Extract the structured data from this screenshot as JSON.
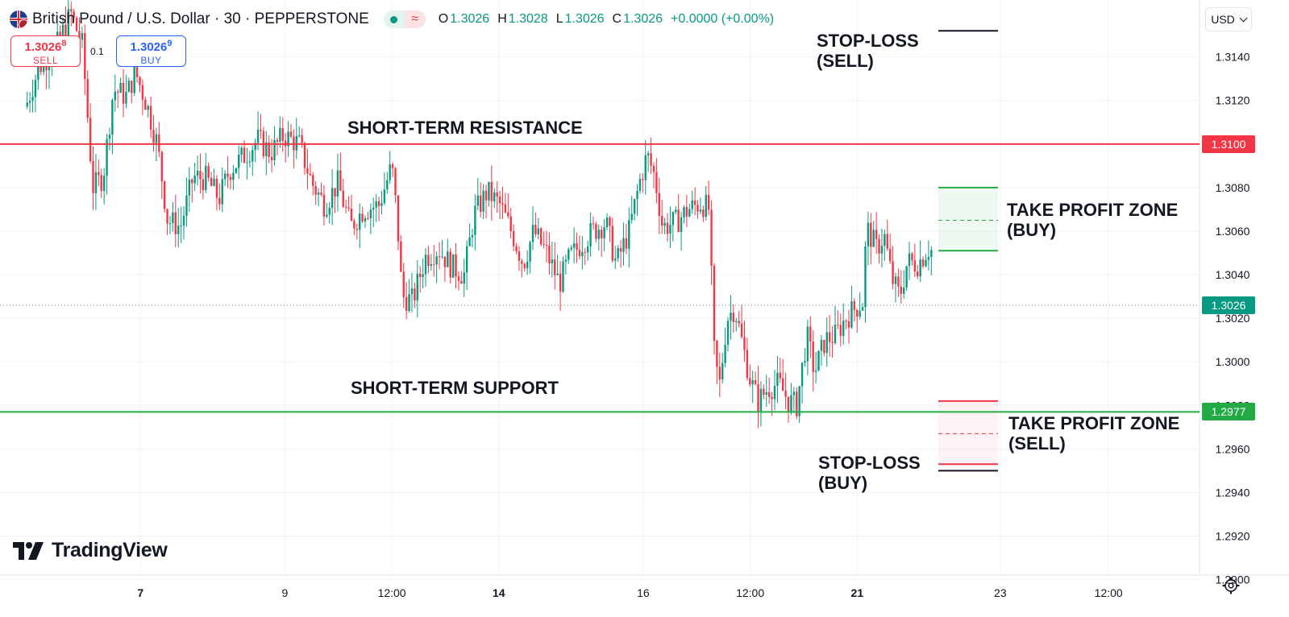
{
  "header": {
    "symbol_title": "British Pound / U.S. Dollar · 30 · PEPPERSTONE",
    "ohlc": [
      {
        "key": "O",
        "value": "1.3026"
      },
      {
        "key": "H",
        "value": "1.3028"
      },
      {
        "key": "L",
        "value": "1.3026"
      },
      {
        "key": "C",
        "value": "1.3026"
      }
    ],
    "change": "+0.0000 (+0.00%)",
    "flag_icon": "gb-us-flag-icon",
    "status_icon": "market-open-dot-icon",
    "wave_glyph": "≈"
  },
  "trade": {
    "sell_price_main": "1.3026",
    "sell_price_pip": "8",
    "sell_label": "SELL",
    "buy_price_main": "1.3026",
    "buy_price_pip": "9",
    "buy_label": "BUY",
    "spread": "0.1"
  },
  "currency_selector": "USD",
  "logo": "TradingView",
  "colors": {
    "bull": "#089981",
    "bear": "#f23645",
    "resistance": "#f23645",
    "support": "#22ab45",
    "tp_buy": "#22ab45",
    "tp_sell": "#f23645",
    "stop": "#131722",
    "grid": "#f0f3fa"
  },
  "annotations": {
    "resistance": "SHORT-TERM RESISTANCE",
    "support": "SHORT-TERM SUPPORT",
    "stop_sell_1": "STOP-LOSS",
    "stop_sell_2": "(SELL)",
    "stop_buy_1": "STOP-LOSS",
    "stop_buy_2": "(BUY)",
    "tp_buy_1": "TAKE PROFIT ZONE",
    "tp_buy_2": "(BUY)",
    "tp_sell_1": "TAKE PROFIT ZONE",
    "tp_sell_2": "(SELL)"
  },
  "chart_data": {
    "type": "candlestick",
    "title": "British Pound / U.S. Dollar · 30 · PEPPERSTONE",
    "xlabel": "",
    "ylabel": "",
    "ylim": [
      1.2898,
      1.3158
    ],
    "y_ticks": [
      "1.3140",
      "1.3120",
      "1.3100",
      "1.3080",
      "1.3060",
      "1.3040",
      "1.3020",
      "1.3000",
      "1.2980",
      "1.2960",
      "1.2940",
      "1.2920",
      "1.2900"
    ],
    "x_ticks": [
      {
        "label": "7",
        "bold": true,
        "frac": 0.109
      },
      {
        "label": "9",
        "bold": false,
        "frac": 0.221
      },
      {
        "label": "12:00",
        "bold": false,
        "frac": 0.304
      },
      {
        "label": "14",
        "bold": true,
        "frac": 0.387
      },
      {
        "label": "16",
        "bold": false,
        "frac": 0.499
      },
      {
        "label": "12:00",
        "bold": false,
        "frac": 0.582
      },
      {
        "label": "21",
        "bold": true,
        "frac": 0.665
      },
      {
        "label": "23",
        "bold": false,
        "frac": 0.776
      },
      {
        "label": "12:00",
        "bold": false,
        "frac": 0.86
      }
    ],
    "grid": true,
    "current_price": "1.3026",
    "resistance_price": "1.3100",
    "support_price": "1.2977",
    "take_profit_buy": {
      "low": 1.3051,
      "high": 1.308,
      "mid": 1.3065
    },
    "take_profit_sell": {
      "low": 1.2953,
      "high": 1.2982,
      "mid": 1.2967
    },
    "stop_loss_sell": 1.3152,
    "stop_loss_buy": 1.295,
    "price_path": [
      [
        0.006,
        1.311
      ],
      [
        0.016,
        1.311
      ],
      [
        0.03,
        1.3135
      ],
      [
        0.044,
        1.3145
      ],
      [
        0.055,
        1.316
      ],
      [
        0.064,
        1.3145
      ],
      [
        0.072,
        1.308
      ],
      [
        0.08,
        1.3085
      ],
      [
        0.088,
        1.3125
      ],
      [
        0.098,
        1.3122
      ],
      [
        0.105,
        1.3133
      ],
      [
        0.114,
        1.3118
      ],
      [
        0.122,
        1.31
      ],
      [
        0.13,
        1.3065
      ],
      [
        0.14,
        1.3062
      ],
      [
        0.15,
        1.3085
      ],
      [
        0.16,
        1.3084
      ],
      [
        0.17,
        1.3075
      ],
      [
        0.178,
        1.3088
      ],
      [
        0.19,
        1.3095
      ],
      [
        0.2,
        1.3102
      ],
      [
        0.21,
        1.3096
      ],
      [
        0.22,
        1.3104
      ],
      [
        0.232,
        1.31
      ],
      [
        0.242,
        1.3082
      ],
      [
        0.252,
        1.3072
      ],
      [
        0.262,
        1.3082
      ],
      [
        0.272,
        1.3062
      ],
      [
        0.282,
        1.307
      ],
      [
        0.294,
        1.3072
      ],
      [
        0.304,
        1.309
      ],
      [
        0.308,
        1.3066
      ],
      [
        0.312,
        1.303
      ],
      [
        0.32,
        1.3028
      ],
      [
        0.33,
        1.3048
      ],
      [
        0.34,
        1.3052
      ],
      [
        0.35,
        1.3044
      ],
      [
        0.36,
        1.304
      ],
      [
        0.368,
        1.3068
      ],
      [
        0.378,
        1.3078
      ],
      [
        0.388,
        1.3072
      ],
      [
        0.398,
        1.3058
      ],
      [
        0.406,
        1.3045
      ],
      [
        0.414,
        1.306
      ],
      [
        0.424,
        1.305
      ],
      [
        0.434,
        1.3036
      ],
      [
        0.442,
        1.3048
      ],
      [
        0.452,
        1.3055
      ],
      [
        0.46,
        1.306
      ],
      [
        0.47,
        1.3064
      ],
      [
        0.478,
        1.3045
      ],
      [
        0.488,
        1.306
      ],
      [
        0.496,
        1.3082
      ],
      [
        0.502,
        1.3095
      ],
      [
        0.508,
        1.3085
      ],
      [
        0.514,
        1.3062
      ],
      [
        0.524,
        1.3064
      ],
      [
        0.534,
        1.307
      ],
      [
        0.544,
        1.3073
      ],
      [
        0.55,
        1.307
      ],
      [
        0.554,
        1.3005
      ],
      [
        0.558,
        1.2988
      ],
      [
        0.564,
        1.302
      ],
      [
        0.57,
        1.3025
      ],
      [
        0.576,
        1.3008
      ],
      [
        0.582,
        1.2992
      ],
      [
        0.588,
        1.2982
      ],
      [
        0.596,
        1.2988
      ],
      [
        0.604,
        1.299
      ],
      [
        0.612,
        1.2982
      ],
      [
        0.618,
        1.298
      ],
      [
        0.626,
        1.3012
      ],
      [
        0.632,
        1.2995
      ],
      [
        0.64,
        1.301
      ],
      [
        0.648,
        1.3012
      ],
      [
        0.656,
        1.302
      ],
      [
        0.664,
        1.3025
      ],
      [
        0.67,
        1.3028
      ],
      [
        0.672,
        1.3062
      ],
      [
        0.68,
        1.3052
      ],
      [
        0.686,
        1.3058
      ],
      [
        0.692,
        1.3038
      ],
      [
        0.698,
        1.303
      ],
      [
        0.704,
        1.3046
      ],
      [
        0.712,
        1.3045
      ],
      [
        0.72,
        1.3052
      ],
      [
        0.726,
        1.305
      ],
      [
        0.732,
        1.3042
      ],
      [
        0.738,
        1.302
      ],
      [
        0.74,
        1.3026
      ]
    ]
  }
}
